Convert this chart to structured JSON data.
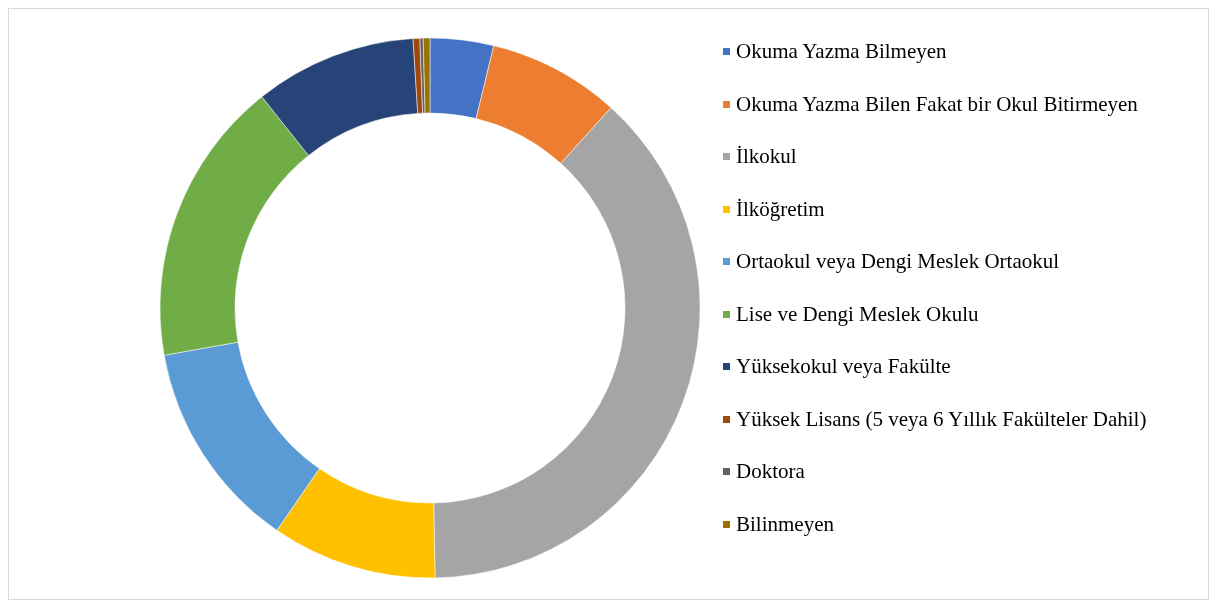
{
  "chart_data": {
    "type": "donut",
    "categories": [
      "Okuma Yazma Bilmeyen",
      "Okuma Yazma Bilen Fakat bir Okul Bitirmeyen",
      "İlkokul",
      "İlköğretim",
      "Ortaokul veya Dengi Meslek Ortaokul",
      "Lise ve Dengi Meslek Okulu",
      "Yüksekokul veya Fakülte",
      "Yüksek Lisans (5 veya 6 Yıllık Fakülteler Dahil)",
      "Doktora",
      "Bilinmeyen"
    ],
    "values": [
      3.8,
      7.9,
      38.0,
      9.9,
      12.6,
      17.1,
      9.7,
      0.4,
      0.2,
      0.4
    ],
    "colors": [
      "#4472c4",
      "#ed7d31",
      "#a5a5a5",
      "#ffc000",
      "#5b9bd5",
      "#70ad47",
      "#264478",
      "#9e480e",
      "#636363",
      "#997300"
    ],
    "legend": "right"
  }
}
